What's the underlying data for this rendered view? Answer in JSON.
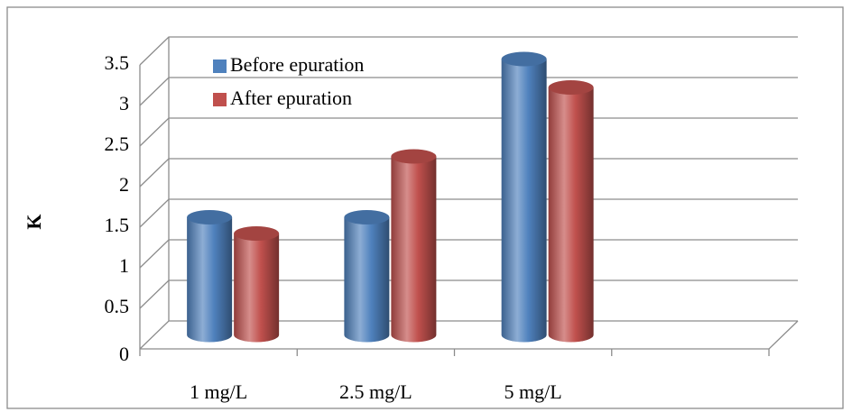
{
  "chart_data": {
    "type": "bar3d",
    "y_label": "K",
    "categories": [
      "1 mg/L",
      "2.5 mg/L",
      "5 mg/L"
    ],
    "series": [
      {
        "name": "Before epuration",
        "color": "#4f81bd",
        "values": [
          1.45,
          1.45,
          3.4
        ]
      },
      {
        "name": "After epuration",
        "color": "#c0504d",
        "values": [
          1.25,
          2.2,
          3.05
        ]
      }
    ],
    "ylim": [
      0,
      3.5
    ],
    "yticks": [
      0,
      0.5,
      1,
      1.5,
      2,
      2.5,
      3,
      3.5
    ],
    "grid": true
  }
}
